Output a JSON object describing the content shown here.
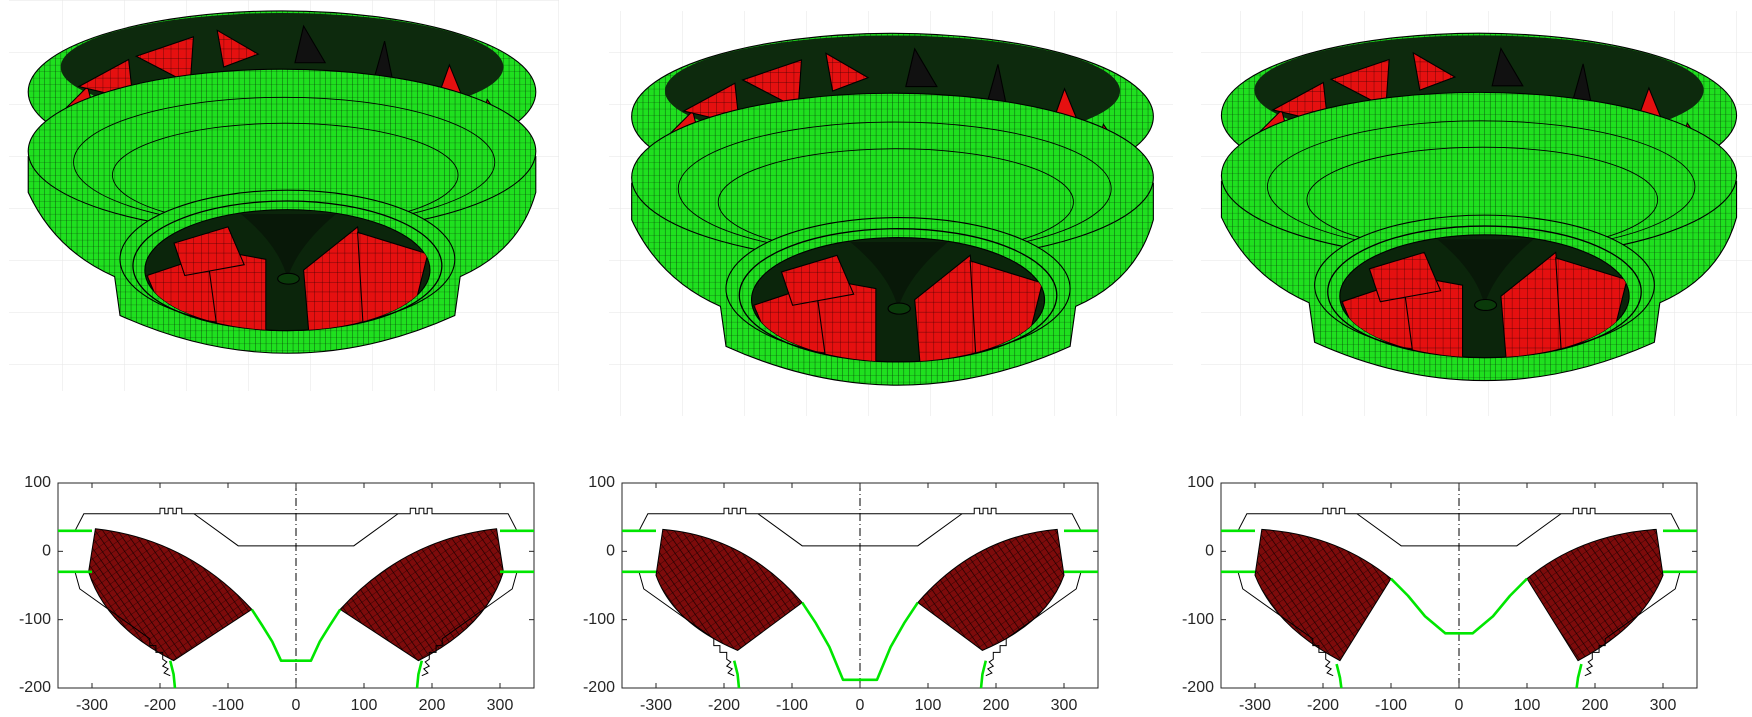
{
  "chart_data": [
    {
      "type": "line",
      "xlim": [
        -350,
        350
      ],
      "ylim": [
        -200,
        100
      ],
      "xticks": [
        -300,
        -200,
        -100,
        0,
        100,
        200,
        300
      ],
      "yticks": [
        -200,
        -100,
        0,
        100
      ],
      "x": [
        -350,
        -300,
        null,
        -350,
        -300,
        null,
        -185,
        -180,
        -178,
        null,
        -65,
        -50,
        -35,
        -22,
        22,
        35,
        50,
        65,
        null,
        178,
        180,
        185,
        null,
        300,
        350,
        null,
        300,
        350
      ],
      "series": [
        {
          "color": "#00e600",
          "values": [
            30,
            30,
            null,
            -30,
            -30,
            null,
            -160,
            -180,
            -200,
            null,
            -85,
            -108,
            -132,
            -160,
            -160,
            -132,
            -108,
            -85,
            null,
            -200,
            -180,
            -160,
            null,
            30,
            30,
            null,
            -30,
            -30
          ]
        }
      ]
    },
    {
      "type": "line",
      "xlim": [
        -350,
        350
      ],
      "ylim": [
        -200,
        100
      ],
      "xticks": [
        -300,
        -200,
        -100,
        0,
        100,
        200,
        300
      ],
      "yticks": [
        -200,
        -100,
        0,
        100
      ],
      "x": [
        -350,
        -300,
        null,
        -350,
        -300,
        null,
        -185,
        -180,
        -178,
        null,
        -85,
        -65,
        -45,
        -25,
        25,
        45,
        65,
        85,
        null,
        178,
        180,
        185,
        null,
        300,
        350,
        null,
        300,
        350
      ],
      "series": [
        {
          "color": "#00e600",
          "values": [
            30,
            30,
            null,
            -30,
            -30,
            null,
            -160,
            -180,
            -200,
            null,
            -75,
            -105,
            -140,
            -188,
            -188,
            -140,
            -105,
            -75,
            null,
            -200,
            -180,
            -160,
            null,
            30,
            30,
            null,
            -30,
            -30
          ]
        }
      ]
    },
    {
      "type": "line",
      "xlim": [
        -350,
        350
      ],
      "ylim": [
        -200,
        100
      ],
      "xticks": [
        -300,
        -200,
        -100,
        0,
        100,
        200,
        300
      ],
      "yticks": [
        -200,
        -100,
        0,
        100
      ],
      "x": [
        -350,
        -300,
        null,
        -350,
        -300,
        null,
        -180,
        -175,
        -173,
        null,
        -100,
        -75,
        -50,
        -20,
        20,
        50,
        75,
        100,
        null,
        173,
        175,
        180,
        null,
        300,
        350,
        null,
        300,
        350
      ],
      "series": [
        {
          "color": "#00e600",
          "values": [
            30,
            30,
            null,
            -30,
            -30,
            null,
            -165,
            -185,
            -200,
            null,
            -40,
            -65,
            -95,
            -120,
            -120,
            -95,
            -65,
            -40,
            null,
            -200,
            -185,
            -165,
            null,
            30,
            30,
            null,
            -30,
            -30
          ]
        }
      ]
    }
  ]
}
